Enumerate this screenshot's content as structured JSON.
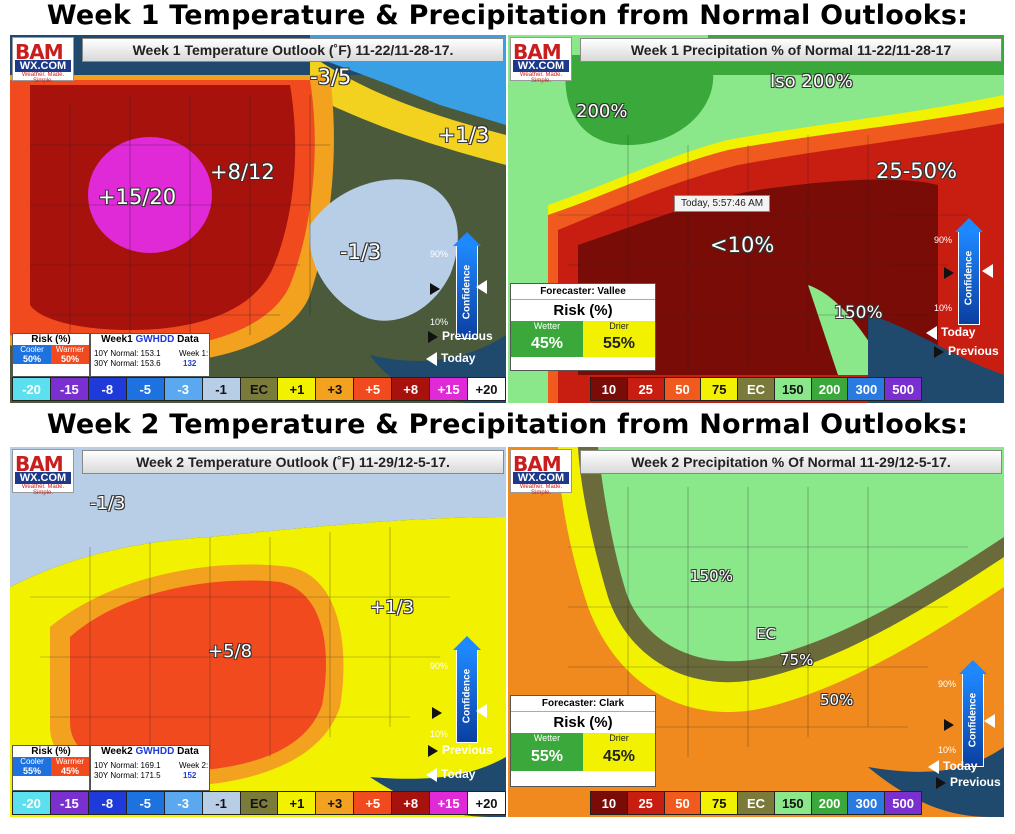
{
  "headers": {
    "week1": "Week 1 Temperature & Precipitation from Normal Outlooks:",
    "week2": "Week 2 Temperature & Precipitation from Normal Outlooks:"
  },
  "logo": {
    "brand": "BAM",
    "site": "WX.COM",
    "tagline": "Weather. Made. Simple."
  },
  "panels": {
    "w1_temp": {
      "title": "Week 1 Temperature Outlook (˚F) 11-22/11-28-17.",
      "labels": [
        "-3/5",
        "+1/3",
        "+8/12",
        "+15/20",
        "-1/3"
      ],
      "risk": {
        "title": "Risk (%)",
        "low_name": "Cooler",
        "high_name": "Warmer",
        "low_val": "50%",
        "high_val": "50%"
      },
      "gwhdd": {
        "title_pre": "Week1",
        "title_hl": "GWHDD",
        "title_post": "Data",
        "n10": "10Y Normal: 153.1",
        "n30": "30Y Normal: 153.6",
        "wk_label": "Week 1:",
        "wk_val": "132"
      },
      "legend": [
        "-20",
        "-15",
        "-8",
        "-5",
        "-3",
        "-1",
        "EC",
        "+1",
        "+3",
        "+5",
        "+8",
        "+15",
        "+20"
      ]
    },
    "w1_precip": {
      "title": "Week 1 Precipitation % of Normal 11-22/11-28-17",
      "labels": [
        "Iso 200%",
        "200%",
        "25-50%",
        "<10%",
        "150%"
      ],
      "forecaster": "Forecaster: Vallee",
      "risk": {
        "title": "Risk (%)",
        "low_name": "Wetter",
        "high_name": "Drier",
        "low_val": "45%",
        "high_val": "55%"
      },
      "legend": [
        "10",
        "25",
        "50",
        "75",
        "EC",
        "150",
        "200",
        "300",
        "500"
      ],
      "tooltip": "Today, 5:57:46 AM"
    },
    "w2_temp": {
      "title": "Week 2 Temperature Outlook (˚F) 11-29/12-5-17.",
      "labels": [
        "-1/3",
        "+1/3",
        "+5/8"
      ],
      "risk": {
        "title": "Risk (%)",
        "low_name": "Cooler",
        "high_name": "Warmer",
        "low_val": "55%",
        "high_val": "45%"
      },
      "gwhdd": {
        "title_pre": "Week2",
        "title_hl": "GWHDD",
        "title_post": "Data",
        "n10": "10Y Normal: 169.1",
        "n30": "30Y Normal: 171.5",
        "wk_label": "Week 2:",
        "wk_val": "152"
      },
      "legend": [
        "-20",
        "-15",
        "-8",
        "-5",
        "-3",
        "-1",
        "EC",
        "+1",
        "+3",
        "+5",
        "+8",
        "+15",
        "+20"
      ]
    },
    "w2_precip": {
      "title": "Week 2 Precipitation % Of Normal 11-29/12-5-17.",
      "labels": [
        "150%",
        "EC",
        "75%",
        "50%"
      ],
      "forecaster": "Forecaster: Clark",
      "risk": {
        "title": "Risk (%)",
        "low_name": "Wetter",
        "high_name": "Drier",
        "low_val": "55%",
        "high_val": "45%"
      },
      "legend": [
        "10",
        "25",
        "50",
        "75",
        "EC",
        "150",
        "200",
        "300",
        "500"
      ]
    }
  },
  "confidence": {
    "label": "Confidence",
    "high": "90%",
    "low": "10%",
    "previous": "Previous",
    "today": "Today"
  },
  "colors": {
    "temp_legend": [
      "#5ce0f0",
      "#7a2fd0",
      "#1e3ad8",
      "#1e72e0",
      "#5aa8f0",
      "#b8cde6",
      "#7a7a3a",
      "#f2f200",
      "#f2a21e",
      "#f04a1e",
      "#a8120c",
      "#e02ad8",
      "#ffffff"
    ],
    "precip_legend": [
      "#7a0c08",
      "#c81e12",
      "#f05a1e",
      "#f2f200",
      "#7a7a3a",
      "#8ae88a",
      "#3aa83a",
      "#2a7ae0",
      "#7a2fd0"
    ]
  }
}
